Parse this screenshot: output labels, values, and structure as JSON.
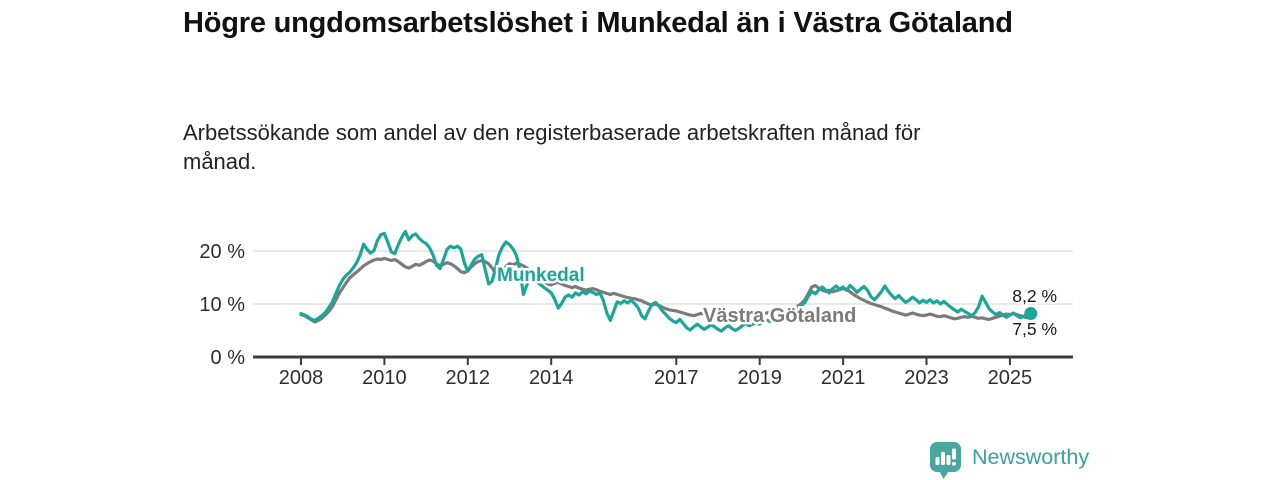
{
  "header": {
    "title": "Högre ungdomsarbetslöshet i Munkedal än i Västra Götaland",
    "subtitle": "Arbetssökande som andel av den registerbaserade arbetskraften månad för månad."
  },
  "chart_data": {
    "type": "line",
    "title": "Högre ungdomsarbetslöshet i Munkedal än i Västra Götaland",
    "subtitle": "Arbetssökande som andel av den registerbaserade arbetskraften månad för månad.",
    "unit": "%",
    "grid": "horizontal",
    "legend_position": "inline-labels",
    "x_start_year": 2008,
    "points_per_year": 12,
    "xlim": [
      2006.9,
      2026.5
    ],
    "ylim": [
      0,
      25
    ],
    "x_ticks": [
      "2008",
      "2010",
      "2012",
      "2014",
      "2017",
      "2019",
      "2021",
      "2023",
      "2025"
    ],
    "x_tick_years": [
      2008,
      2010,
      2012,
      2014,
      2017,
      2019,
      2021,
      2023,
      2025
    ],
    "y_ticks": [
      {
        "value": 0,
        "label": "0 %"
      },
      {
        "value": 10,
        "label": "10 %"
      },
      {
        "value": 20,
        "label": "20 %"
      }
    ],
    "series": [
      {
        "name": "Munkedal",
        "color": "#1ba697",
        "end_label": "8,2 %",
        "end_value": 8.2,
        "values": [
          8.2,
          7.9,
          7.6,
          7.1,
          6.9,
          7.3,
          7.8,
          8.4,
          9.3,
          10.4,
          11.9,
          13.4,
          14.6,
          15.4,
          16.0,
          16.8,
          17.8,
          19.2,
          21.3,
          20.3,
          19.6,
          20.1,
          22.0,
          23.1,
          23.3,
          21.6,
          19.8,
          19.5,
          21.2,
          22.6,
          23.7,
          22.1,
          22.9,
          23.2,
          22.4,
          21.8,
          21.4,
          20.6,
          19.2,
          17.3,
          16.7,
          18.4,
          20.3,
          20.9,
          20.6,
          20.9,
          20.4,
          17.8,
          16.2,
          17.4,
          18.5,
          19.0,
          19.3,
          16.5,
          13.8,
          14.3,
          16.8,
          19.4,
          20.8,
          21.7,
          21.2,
          20.4,
          19.1,
          16.4,
          11.8,
          13.6,
          15.2,
          14.6,
          14.1,
          13.6,
          13.1,
          12.6,
          12.1,
          10.9,
          9.2,
          10.1,
          11.3,
          11.7,
          11.3,
          12.1,
          11.7,
          12.3,
          11.9,
          12.4,
          12.2,
          11.8,
          12.1,
          10.7,
          8.3,
          6.9,
          8.7,
          10.4,
          10.1,
          10.6,
          10.2,
          10.7,
          10.1,
          9.3,
          7.8,
          7.2,
          8.7,
          9.9,
          10.3,
          9.6,
          8.7,
          8.0,
          7.3,
          6.8,
          6.5,
          7.1,
          6.3,
          5.5,
          5.1,
          5.7,
          6.2,
          5.7,
          5.2,
          5.6,
          6.1,
          5.7,
          5.2,
          4.9,
          5.5,
          5.9,
          5.4,
          5.0,
          5.4,
          5.9,
          6.3,
          5.9,
          6.2,
          6.5,
          6.2,
          6.6,
          7.0,
          6.7,
          7.1,
          7.5,
          7.2,
          7.6,
          8.0,
          8.3,
          8.7,
          9.2,
          9.7,
          10.3,
          11.5,
          12.4,
          11.9,
          12.7,
          13.2,
          12.6,
          12.1,
          12.9,
          13.4,
          12.8,
          13.2,
          12.6,
          13.5,
          12.9,
          12.2,
          12.8,
          13.3,
          12.6,
          11.4,
          10.8,
          11.5,
          12.3,
          13.4,
          12.4,
          11.6,
          11.0,
          11.6,
          10.9,
          10.3,
          10.7,
          11.3,
          10.8,
          10.2,
          10.7,
          10.3,
          10.8,
          10.2,
          10.6,
          10.0,
          10.5,
          9.9,
          9.4,
          8.9,
          8.5,
          9.0,
          8.6,
          8.2,
          7.8,
          8.4,
          9.5,
          11.5,
          10.3,
          9.1,
          8.5,
          8.0,
          8.4,
          7.9,
          7.5,
          7.9,
          8.3,
          7.8,
          7.4,
          7.7,
          8.0,
          8.2
        ]
      },
      {
        "name": "Västra Götaland",
        "color": "#7b7b7b",
        "end_label": "7,5 %",
        "end_value": 7.5,
        "values": [
          8.0,
          7.8,
          7.4,
          7.0,
          6.6,
          6.9,
          7.3,
          7.9,
          8.6,
          9.5,
          10.7,
          12.0,
          13.0,
          14.0,
          14.9,
          15.5,
          16.0,
          16.6,
          17.2,
          17.6,
          18.0,
          18.3,
          18.5,
          18.4,
          18.6,
          18.4,
          18.2,
          18.4,
          18.0,
          17.5,
          17.0,
          16.8,
          17.1,
          17.5,
          17.3,
          17.6,
          18.0,
          18.3,
          18.1,
          17.6,
          17.2,
          17.5,
          17.8,
          17.6,
          17.2,
          16.7,
          16.1,
          15.9,
          16.3,
          17.0,
          17.6,
          18.0,
          18.2,
          18.0,
          17.6,
          16.8,
          15.8,
          15.3,
          16.2,
          17.1,
          17.6,
          17.4,
          17.7,
          17.5,
          17.2,
          16.8,
          16.3,
          15.7,
          15.2,
          14.7,
          14.2,
          13.8,
          13.6,
          13.9,
          14.1,
          13.8,
          13.5,
          13.3,
          13.1,
          13.3,
          13.0,
          12.8,
          12.6,
          12.8,
          12.9,
          12.7,
          12.4,
          12.2,
          12.0,
          11.8,
          12.0,
          11.8,
          11.6,
          11.4,
          11.2,
          11.1,
          11.0,
          10.8,
          10.6,
          10.3,
          10.0,
          9.8,
          10.0,
          9.7,
          9.4,
          9.1,
          8.9,
          8.8,
          8.7,
          8.5,
          8.3,
          8.1,
          7.9,
          7.8,
          8.0,
          8.2,
          8.1,
          7.9,
          7.8,
          7.9,
          7.8,
          7.7,
          7.8,
          8.0,
          7.9,
          7.8,
          8.0,
          8.2,
          8.1,
          8.0,
          8.2,
          8.3,
          8.2,
          8.1,
          8.3,
          8.5,
          8.4,
          8.6,
          8.8,
          8.7,
          8.9,
          9.1,
          9.3,
          9.6,
          10.1,
          10.8,
          12.0,
          13.2,
          13.5,
          13.0,
          12.6,
          12.4,
          12.6,
          12.3,
          12.5,
          12.7,
          12.9,
          12.7,
          12.3,
          11.8,
          11.4,
          11.0,
          10.7,
          10.4,
          10.1,
          9.9,
          9.7,
          9.5,
          9.2,
          9.0,
          8.7,
          8.5,
          8.3,
          8.1,
          7.9,
          8.1,
          8.3,
          8.1,
          7.9,
          7.8,
          7.9,
          8.1,
          7.9,
          7.7,
          7.6,
          7.8,
          7.6,
          7.4,
          7.2,
          7.3,
          7.5,
          7.6,
          7.5,
          7.7,
          7.5,
          7.3,
          7.4,
          7.2,
          7.1,
          7.3,
          7.5,
          7.7,
          7.9,
          8.1,
          8.0,
          8.2,
          8.0,
          7.8,
          7.6,
          7.4,
          7.5
        ]
      }
    ]
  },
  "footer": {
    "brand": "Newsworthy",
    "logo_icon": "bar-chart-speech-bubble-icon"
  },
  "colors": {
    "munkedal_line": "#1ba697",
    "vastra_gotaland_line": "#7b7b7b",
    "axis": "#3b3b3b",
    "gridline": "#dcdcdc",
    "tick_text": "#2e2e2e",
    "value_label_text": "#1a1a1a",
    "brand_teal": "#3ba19b",
    "logo_badge_teal": "#4aa6a1"
  }
}
